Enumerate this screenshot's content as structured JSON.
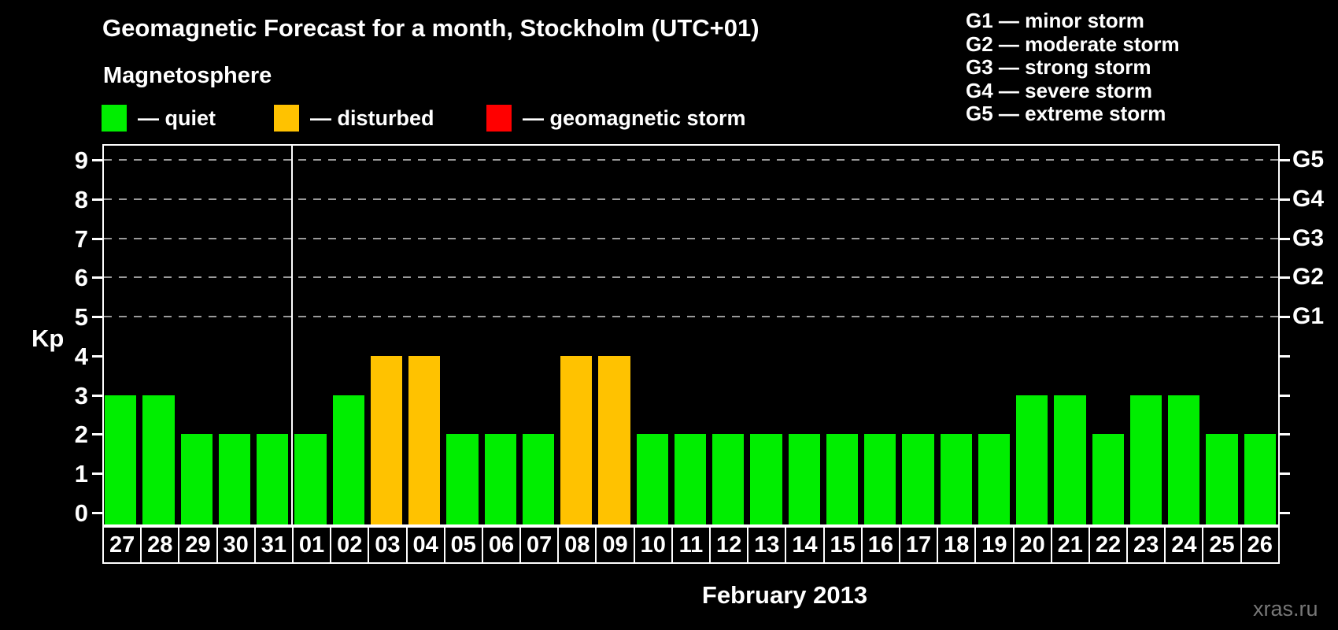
{
  "header": {
    "title": "Geomagnetic Forecast for a month, Stockholm (UTC+01)",
    "legend_title": "Magnetosphere",
    "legend": [
      {
        "name": "quiet",
        "label": "— quiet",
        "color": "#00ee00",
        "x": 129
      },
      {
        "name": "disturbed",
        "label": "— disturbed",
        "color": "#ffc200",
        "x": 348
      },
      {
        "name": "storm",
        "label": "— geomagnetic storm",
        "color": "#ff0000",
        "x": 618
      }
    ],
    "g_scale_legend": [
      "G1 — minor storm",
      "G2 — moderate storm",
      "G3 — strong storm",
      "G4 — severe storm",
      "G5 — extreme storm"
    ]
  },
  "chart_data": {
    "type": "bar",
    "title": "Geomagnetic Forecast for a month, Stockholm (UTC+01)",
    "xlabel": "February 2013",
    "ylabel": "Kp",
    "ylim": [
      0,
      9
    ],
    "yticks": [
      0,
      1,
      2,
      3,
      4,
      5,
      6,
      7,
      8,
      9
    ],
    "grid": "dashed horizontal at Kp 5-9",
    "gridlines_at": [
      5,
      6,
      7,
      8,
      9
    ],
    "right_axis_labels": [
      {
        "kp": 9,
        "label": "G5"
      },
      {
        "kp": 8,
        "label": "G4"
      },
      {
        "kp": 7,
        "label": "G3"
      },
      {
        "kp": 6,
        "label": "G2"
      },
      {
        "kp": 5,
        "label": "G1"
      }
    ],
    "legend_position": "top-left",
    "month_separator_after_index": 4,
    "categories": [
      "27",
      "28",
      "29",
      "30",
      "31",
      "01",
      "02",
      "03",
      "04",
      "05",
      "06",
      "07",
      "08",
      "09",
      "10",
      "11",
      "12",
      "13",
      "14",
      "15",
      "16",
      "17",
      "18",
      "19",
      "20",
      "21",
      "22",
      "23",
      "24",
      "25",
      "26"
    ],
    "values": [
      3,
      3,
      2,
      2,
      2,
      2,
      3,
      4,
      4,
      2,
      2,
      2,
      4,
      4,
      2,
      2,
      2,
      2,
      2,
      2,
      2,
      2,
      2,
      2,
      3,
      3,
      2,
      3,
      3,
      2,
      2
    ],
    "color_rule": {
      "quiet_max": 3,
      "disturbed_min": 4,
      "storm_min": 5
    },
    "colors": {
      "quiet": "#00ee00",
      "disturbed": "#ffc200",
      "storm": "#ff0000",
      "grid": "#9a9a9a"
    }
  },
  "axis": {
    "kp_label": "Kp"
  },
  "footer": {
    "month_label": "February 2013",
    "watermark": "xras.ru"
  }
}
